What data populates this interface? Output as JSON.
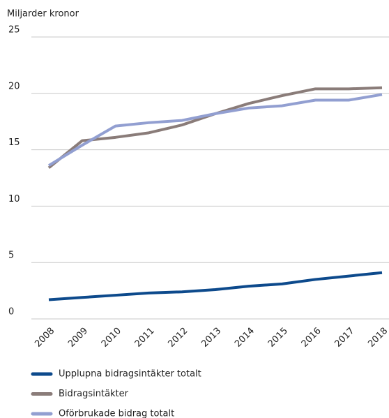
{
  "chart_data": {
    "type": "line",
    "y_label": "Miljarder kronor",
    "categories": [
      "2008",
      "2009",
      "2010",
      "2011",
      "2012",
      "2013",
      "2014",
      "2015",
      "2016",
      "2017",
      "2018"
    ],
    "series": [
      {
        "name": "Upplupna bidragsintäkter totalt",
        "color": "#0d4a8c",
        "values": [
          1.7,
          1.9,
          2.1,
          2.3,
          2.4,
          2.6,
          2.9,
          3.1,
          3.5,
          3.8,
          4.1
        ]
      },
      {
        "name": "Bidragsintäkter",
        "color": "#8a7c79",
        "values": [
          13.4,
          15.8,
          16.1,
          16.5,
          17.2,
          18.2,
          19.1,
          19.8,
          20.4,
          20.4,
          20.5
        ]
      },
      {
        "name": "Oförbrukade bidrag totalt",
        "color": "#929fd1",
        "values": [
          13.6,
          15.4,
          17.1,
          17.4,
          17.6,
          18.2,
          18.7,
          18.9,
          19.4,
          19.4,
          19.9
        ]
      }
    ],
    "ylim": [
      0,
      25
    ],
    "yticks": [
      0,
      5,
      10,
      15,
      20,
      25
    ],
    "grid": true
  }
}
